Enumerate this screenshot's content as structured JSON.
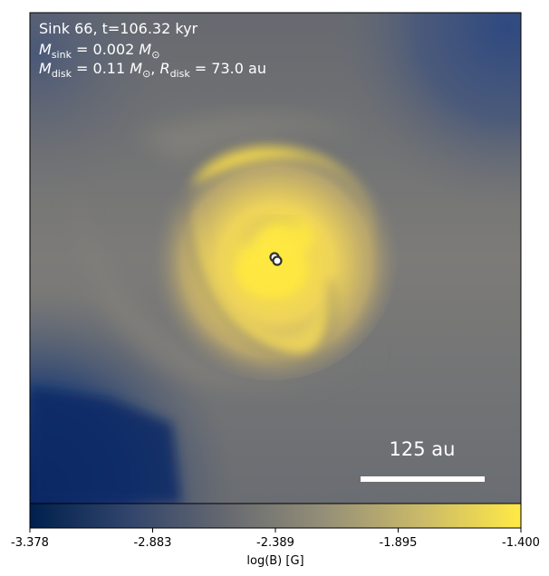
{
  "annotation": {
    "line1": "Sink 66, t=106.32 kyr",
    "line2_sub": "sink",
    "line2_rest": " = 0.002 ",
    "line3_sub1": "disk",
    "line3_mid": " = 0.11 ",
    "line3_sub2": "disk",
    "line3_rest": " = 73.0 au",
    "msun_sub": "⊙"
  },
  "scale_bar": {
    "label": "125 au"
  },
  "colorbar": {
    "label": "log(B) [G]",
    "ticks": [
      "-3.378",
      "-2.883",
      "-2.389",
      "-1.895",
      "-1.400"
    ],
    "range": [
      -3.378,
      -1.4
    ],
    "colors": [
      "#00204d",
      "#31446b",
      "#666970",
      "#958f78",
      "#cbba69",
      "#ffea46"
    ]
  },
  "colors": {
    "background": "#6f7276",
    "disk": "#ffe84a",
    "low_field": "#0b2a66",
    "sink_marker": "#ffffff"
  }
}
